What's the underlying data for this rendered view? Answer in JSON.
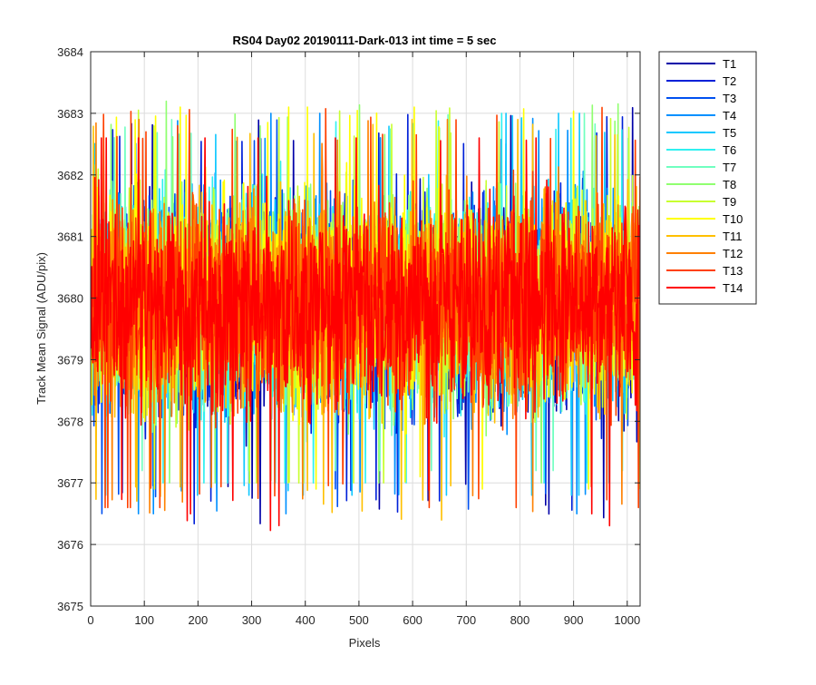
{
  "chart_data": {
    "type": "line",
    "title": "RS04 Day02 20190111-Dark-013 int time = 5 sec",
    "xlabel": "Pixels",
    "ylabel": "Track Mean Signal (ADU/pix)",
    "xlim": [
      0,
      1024
    ],
    "ylim": [
      3675,
      3684
    ],
    "x_ticks": [
      0,
      100,
      200,
      300,
      400,
      500,
      600,
      700,
      800,
      900,
      1000
    ],
    "y_ticks": [
      3675,
      3676,
      3677,
      3678,
      3679,
      3680,
      3681,
      3682,
      3683,
      3684
    ],
    "grid": true,
    "legend_placement": "outside-right",
    "x_points": 1024,
    "series": [
      {
        "name": "T1",
        "color": "#0000a8",
        "mean": 3679.9,
        "min": 3675.8,
        "max": 3683.1
      },
      {
        "name": "T2",
        "color": "#0020d8",
        "mean": 3679.9,
        "min": 3676.0,
        "max": 3683.0
      },
      {
        "name": "T3",
        "color": "#0050f0",
        "mean": 3679.9,
        "min": 3676.2,
        "max": 3683.0
      },
      {
        "name": "T4",
        "color": "#0090ff",
        "mean": 3679.9,
        "min": 3676.5,
        "max": 3683.0
      },
      {
        "name": "T5",
        "color": "#10c8ff",
        "mean": 3679.9,
        "min": 3676.8,
        "max": 3683.0
      },
      {
        "name": "T6",
        "color": "#30f0f0",
        "mean": 3679.9,
        "min": 3677.0,
        "max": 3683.0
      },
      {
        "name": "T7",
        "color": "#70ffc0",
        "mean": 3679.9,
        "min": 3677.2,
        "max": 3683.0
      },
      {
        "name": "T8",
        "color": "#90ff70",
        "mean": 3680.0,
        "min": 3677.0,
        "max": 3683.4
      },
      {
        "name": "T9",
        "color": "#c8ff30",
        "mean": 3680.0,
        "min": 3677.0,
        "max": 3683.2
      },
      {
        "name": "T10",
        "color": "#ffff00",
        "mean": 3680.0,
        "min": 3676.9,
        "max": 3683.1
      },
      {
        "name": "T11",
        "color": "#ffc000",
        "mean": 3679.9,
        "min": 3676.3,
        "max": 3682.9
      },
      {
        "name": "T12",
        "color": "#ff8000",
        "mean": 3679.9,
        "min": 3676.5,
        "max": 3682.9
      },
      {
        "name": "T13",
        "color": "#ff4000",
        "mean": 3679.9,
        "min": 3676.6,
        "max": 3683.2
      },
      {
        "name": "T14",
        "color": "#ff0000",
        "mean": 3679.9,
        "min": 3675.4,
        "max": 3682.6
      }
    ]
  }
}
